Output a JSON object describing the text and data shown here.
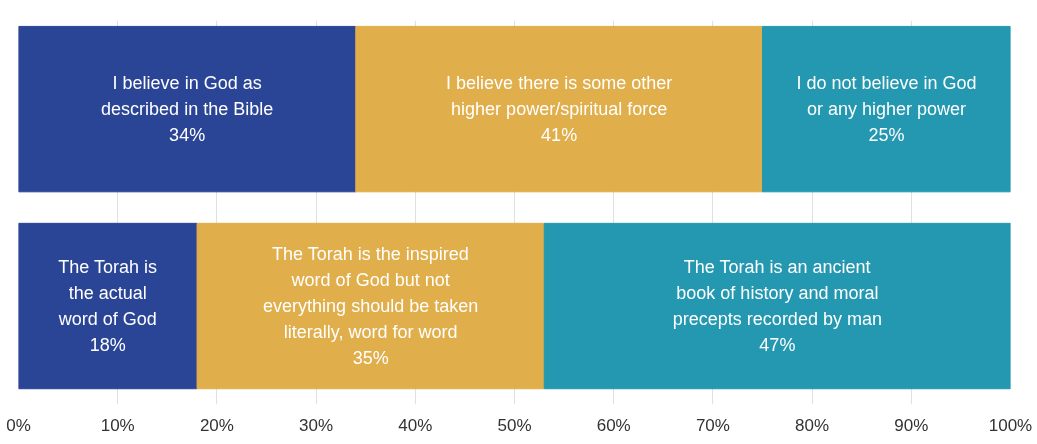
{
  "chart_data": {
    "type": "bar",
    "orientation": "horizontal",
    "stacked": true,
    "categories": [
      null,
      null
    ],
    "series": [
      {
        "color": "#2b4596",
        "values": [
          34,
          18
        ],
        "value_labels": [
          "I believe in God as\ndescribed in the Bible\n34%",
          "The Torah is\nthe actual\nword of God\n18%"
        ]
      },
      {
        "color": "#e0ae4a",
        "values": [
          41,
          35
        ],
        "value_labels": [
          "I believe there is some other\nhigher power/spiritual force\n41%",
          "The Torah is the inspired\nword of God but not\neverything should be taken\nliterally, word for word\n35%"
        ]
      },
      {
        "color": "#2398b0",
        "values": [
          25,
          47
        ],
        "value_labels": [
          "I do not believe in God\nor any higher power\n25%",
          "The Torah is an ancient\nbook of history and moral\nprecepts recorded by man\n47%"
        ]
      }
    ],
    "xlim": [
      0,
      100
    ],
    "xticks": [
      {
        "value": 0,
        "label": "0%"
      },
      {
        "value": 10,
        "label": "10%"
      },
      {
        "value": 20,
        "label": "20%"
      },
      {
        "value": 30,
        "label": "30%"
      },
      {
        "value": 40,
        "label": "40%"
      },
      {
        "value": 50,
        "label": "50%"
      },
      {
        "value": 60,
        "label": "60%"
      },
      {
        "value": 70,
        "label": "70%"
      },
      {
        "value": 80,
        "label": "80%"
      },
      {
        "value": 90,
        "label": "90%"
      },
      {
        "value": 100,
        "label": "100%"
      }
    ],
    "grid": "x",
    "tick_labels": "x"
  }
}
